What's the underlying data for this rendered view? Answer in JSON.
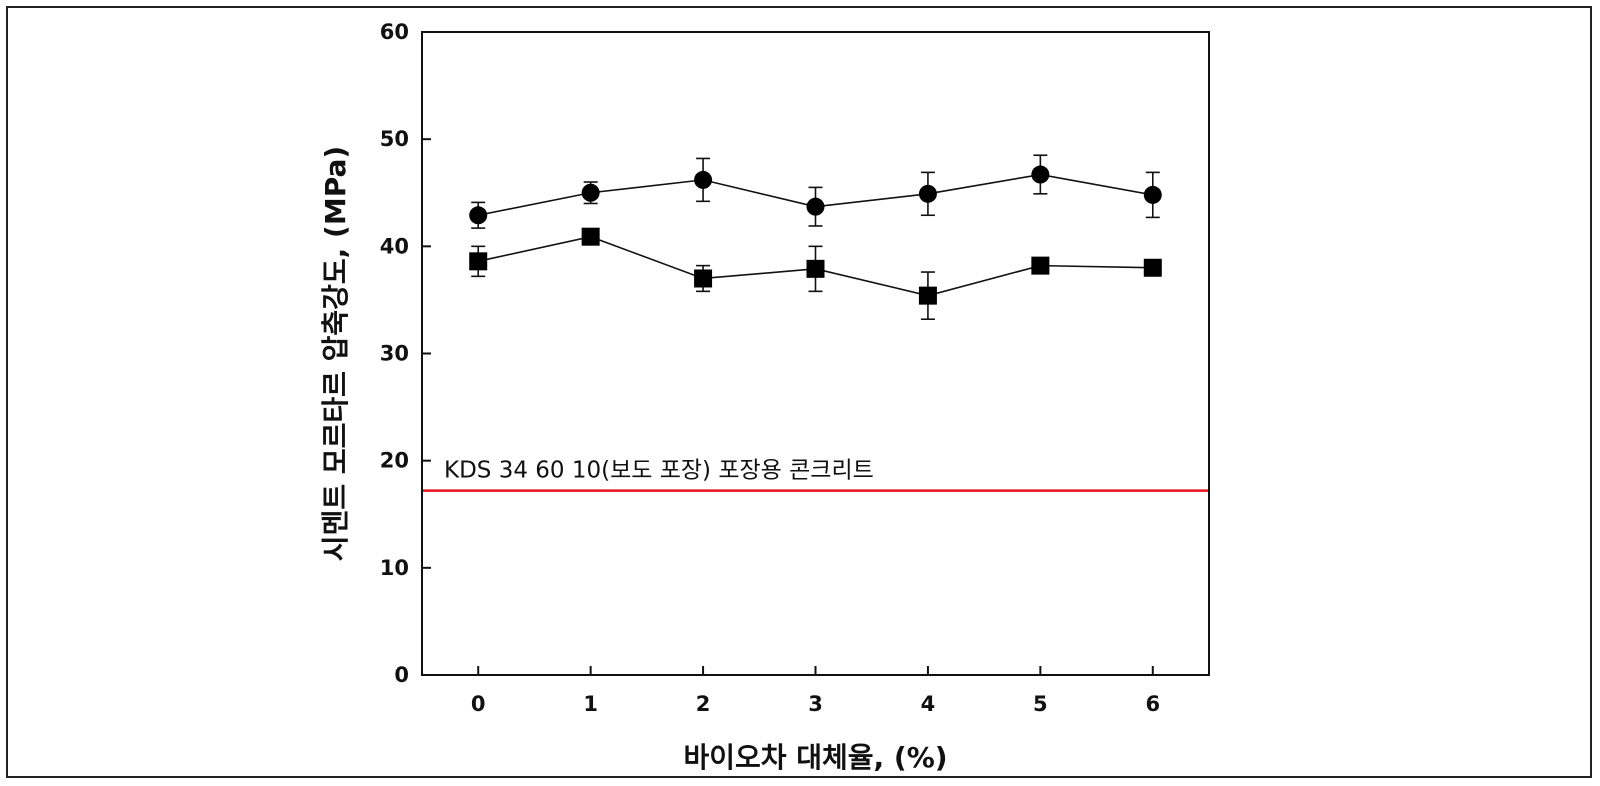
{
  "chart_data": {
    "type": "line",
    "x": [
      0,
      1,
      2,
      3,
      4,
      5,
      6
    ],
    "xlim": [
      -0.5,
      6.5
    ],
    "ylim": [
      0,
      60
    ],
    "xticks": [
      "0",
      "1",
      "2",
      "3",
      "4",
      "5",
      "6"
    ],
    "yticks": [
      "0",
      "10",
      "20",
      "30",
      "40",
      "50",
      "60"
    ],
    "xlabel": "바이오차 대체율, (%)",
    "ylabel": "시멘트 모르타르 압축강도, (MPa)",
    "grid": false,
    "series": [
      {
        "marker": "circle",
        "values": [
          42.9,
          45.0,
          46.2,
          43.7,
          44.9,
          46.7,
          44.8
        ],
        "error": [
          1.2,
          1.0,
          2.0,
          1.8,
          2.0,
          1.8,
          2.1
        ]
      },
      {
        "marker": "square",
        "values": [
          38.6,
          40.9,
          37.0,
          37.9,
          35.4,
          38.2,
          38.0
        ],
        "error": [
          1.4,
          0.5,
          1.2,
          2.1,
          2.2,
          0.5,
          0.6
        ]
      }
    ],
    "reference_line": {
      "y": 17.2,
      "color": "#e8131b",
      "label": "KDS 34 60 10(보도 포장) 포장용 콘크리트"
    }
  }
}
